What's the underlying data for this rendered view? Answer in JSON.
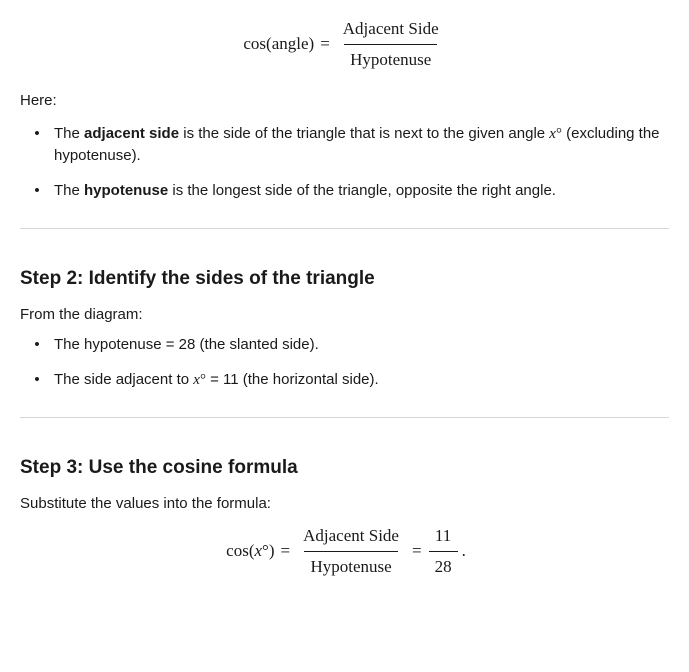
{
  "eq1": {
    "lhs": "cos(angle)",
    "eq": "=",
    "num": "Adjacent Side",
    "den": "Hypotenuse"
  },
  "intro": "Here:",
  "defs": {
    "adj_pre": "The ",
    "adj_bold": "adjacent side",
    "adj_post_1": " is the side of the triangle that is next to the given angle ",
    "angle_var": "x",
    "angle_deg": "°",
    "adj_post_2": " (excluding the hypotenuse).",
    "hyp_pre": "The ",
    "hyp_bold": "hypotenuse",
    "hyp_post": " is the longest side of the triangle, opposite the right angle."
  },
  "step2": {
    "title": "Step 2: Identify the sides of the triangle",
    "lead": "From the diagram:",
    "item1": "The hypotenuse = 28 (the slanted side).",
    "item2_pre": "The side adjacent to ",
    "item2_post": " = 11 (the horizontal side)."
  },
  "step3": {
    "title": "Step 3: Use the cosine formula",
    "lead": "Substitute the values into the formula:",
    "eq": {
      "lhs_pre": "cos(",
      "lhs_post": ")",
      "eq": "=",
      "num1": "Adjacent Side",
      "den1": "Hypotenuse",
      "num2": "11",
      "den2": "28",
      "tail": "."
    }
  }
}
